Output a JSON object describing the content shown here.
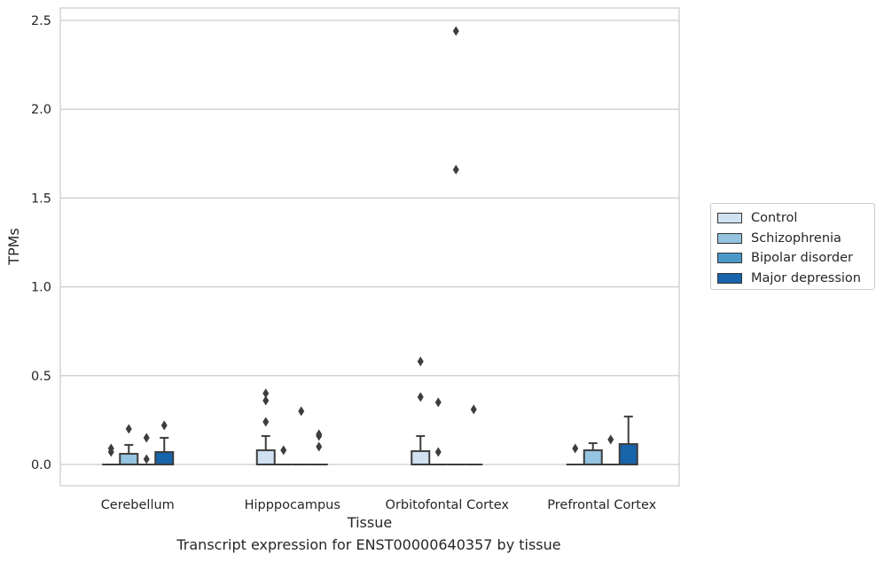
{
  "chart_data": {
    "type": "box",
    "title": "",
    "caption": "Transcript expression for ENST00000640357 by tissue",
    "xlabel": "Tissue",
    "ylabel": "TPMs",
    "ylim": [
      -0.12,
      2.57
    ],
    "yticks": [
      0.0,
      0.5,
      1.0,
      1.5,
      2.0,
      2.5
    ],
    "ytick_labels": [
      "0.0",
      "0.5",
      "1.0",
      "1.5",
      "2.0",
      "2.5"
    ],
    "grid": true,
    "legend_placement": "outside-right",
    "categories": [
      "Cerebellum",
      "Hipppocampus",
      "Orbitofontal Cortex",
      "Prefrontal Cortex"
    ],
    "series": [
      {
        "name": "Control",
        "color": "#d0e1f2",
        "boxes": [
          {
            "q1": 0,
            "median": 0,
            "q3": 0,
            "whisker_low": 0,
            "whisker_high": 0,
            "outliers": [
              0.07,
              0.09
            ]
          },
          {
            "q1": 0,
            "median": 0,
            "q3": 0.08,
            "whisker_low": 0,
            "whisker_high": 0.16,
            "outliers": [
              0.24,
              0.36,
              0.4
            ]
          },
          {
            "q1": 0,
            "median": 0,
            "q3": 0.075,
            "whisker_low": 0,
            "whisker_high": 0.16,
            "outliers": [
              0.38,
              0.58
            ]
          },
          {
            "q1": 0,
            "median": 0,
            "q3": 0,
            "whisker_low": 0,
            "whisker_high": 0,
            "outliers": [
              0.09
            ]
          }
        ]
      },
      {
        "name": "Schizophrenia",
        "color": "#94c4df",
        "boxes": [
          {
            "q1": 0,
            "median": 0,
            "q3": 0.06,
            "whisker_low": 0,
            "whisker_high": 0.11,
            "outliers": [
              0.2
            ]
          },
          {
            "q1": 0,
            "median": 0,
            "q3": 0,
            "whisker_low": 0,
            "whisker_high": 0,
            "outliers": [
              0.08
            ]
          },
          {
            "q1": 0,
            "median": 0,
            "q3": 0,
            "whisker_low": 0,
            "whisker_high": 0,
            "outliers": [
              0.07,
              0.35
            ]
          },
          {
            "q1": 0,
            "median": 0,
            "q3": 0.08,
            "whisker_low": 0,
            "whisker_high": 0.12,
            "outliers": []
          }
        ]
      },
      {
        "name": "Bipolar disorder",
        "color": "#4a98c9",
        "boxes": [
          {
            "q1": 0,
            "median": 0,
            "q3": 0,
            "whisker_low": 0,
            "whisker_high": 0,
            "outliers": [
              0.03,
              0.15
            ]
          },
          {
            "q1": 0,
            "median": 0,
            "q3": 0,
            "whisker_low": 0,
            "whisker_high": 0,
            "outliers": [
              0.3
            ]
          },
          {
            "q1": 0,
            "median": 0,
            "q3": 0,
            "whisker_low": 0,
            "whisker_high": 0,
            "outliers": [
              1.66,
              2.44
            ]
          },
          {
            "q1": 0,
            "median": 0,
            "q3": 0,
            "whisker_low": 0,
            "whisker_high": 0,
            "outliers": [
              0.14
            ]
          }
        ]
      },
      {
        "name": "Major depression",
        "color": "#1764ab",
        "boxes": [
          {
            "q1": 0,
            "median": 0,
            "q3": 0.07,
            "whisker_low": 0,
            "whisker_high": 0.15,
            "outliers": [
              0.22
            ]
          },
          {
            "q1": 0,
            "median": 0,
            "q3": 0,
            "whisker_low": 0,
            "whisker_high": 0,
            "outliers": [
              0.1,
              0.16,
              0.17
            ]
          },
          {
            "q1": 0,
            "median": 0,
            "q3": 0,
            "whisker_low": 0,
            "whisker_high": 0,
            "outliers": [
              0.31
            ]
          },
          {
            "q1": 0,
            "median": 0,
            "q3": 0.115,
            "whisker_low": 0,
            "whisker_high": 0.27,
            "outliers": []
          }
        ]
      }
    ]
  }
}
